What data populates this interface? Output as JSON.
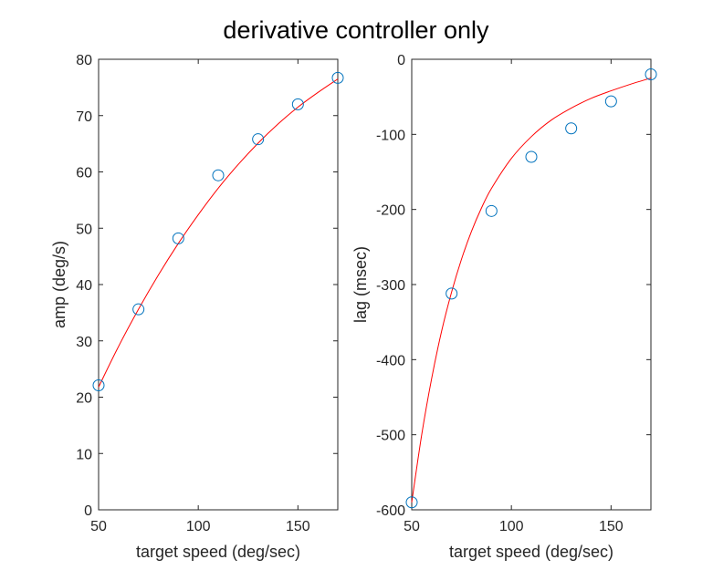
{
  "figure": {
    "title": "derivative controller only"
  },
  "chart_data": [
    {
      "type": "scatter",
      "xlabel": "target speed (deg/sec)",
      "ylabel": "amp (deg/s)",
      "xlim": [
        50,
        170
      ],
      "ylim": [
        0,
        80
      ],
      "xticks": [
        50,
        100,
        150
      ],
      "yticks": [
        0,
        10,
        20,
        30,
        40,
        50,
        60,
        70,
        80
      ],
      "marker_color": "#0072BD",
      "fit_color": "#FF0000",
      "points": {
        "x": [
          50,
          70,
          90,
          110,
          130,
          150,
          170
        ],
        "y": [
          22.1,
          35.6,
          48.2,
          59.4,
          65.8,
          72.0,
          76.7
        ]
      },
      "fit": {
        "x": [
          50,
          60,
          70,
          80,
          90,
          100,
          110,
          120,
          130,
          140,
          150,
          160,
          170
        ],
        "y": [
          21.8,
          29.0,
          35.6,
          41.7,
          47.3,
          52.4,
          57.1,
          61.3,
          65.1,
          68.5,
          71.5,
          74.1,
          76.5
        ]
      }
    },
    {
      "type": "scatter",
      "xlabel": "target speed (deg/sec)",
      "ylabel": "lag (msec)",
      "xlim": [
        50,
        170
      ],
      "ylim": [
        -600,
        0
      ],
      "xticks": [
        50,
        100,
        150
      ],
      "yticks": [
        -600,
        -500,
        -400,
        -300,
        -200,
        -100,
        0
      ],
      "marker_color": "#0072BD",
      "fit_color": "#FF0000",
      "points": {
        "x": [
          50,
          70,
          90,
          110,
          130,
          150,
          170
        ],
        "y": [
          -590,
          -312,
          -202,
          -130,
          -92,
          -56,
          -20
        ]
      },
      "fit": {
        "x": [
          50,
          55,
          60,
          65,
          70,
          75,
          80,
          85,
          90,
          100,
          110,
          120,
          130,
          140,
          150,
          160,
          170
        ],
        "y": [
          -590,
          -500,
          -425,
          -362,
          -310,
          -266,
          -229,
          -198,
          -172,
          -132,
          -103,
          -81,
          -65,
          -52,
          -42,
          -33,
          -25
        ]
      }
    }
  ]
}
